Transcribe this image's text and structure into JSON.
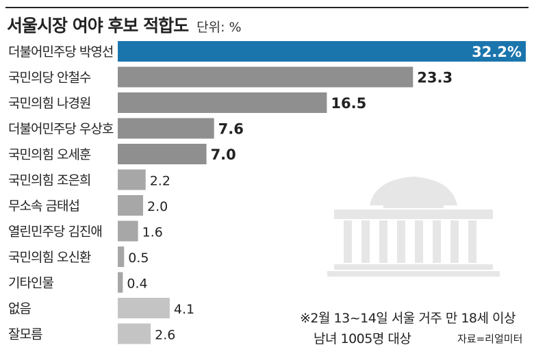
{
  "chart_data": {
    "type": "bar",
    "title": "서울시장 여야 후보 적합도",
    "unit": "단위: %",
    "categories": [
      "더불어민주당 박영선",
      "국민의당 안철수",
      "국민의힘 나경원",
      "더불어민주당 우상호",
      "국민의힘 오세훈",
      "국민의힘 조은희",
      "무소속 금태섭",
      "열린민주당 김진애",
      "국민의힘 오신환",
      "기타인물",
      "없음",
      "잘모름"
    ],
    "values": [
      32.2,
      23.3,
      16.5,
      7.6,
      7.0,
      2.2,
      2.0,
      1.6,
      0.5,
      0.4,
      4.1,
      2.6
    ],
    "value_labels": [
      "32.2%",
      "23.3",
      "16.5",
      "7.6",
      "7.0",
      "2.2",
      "2.0",
      "1.6",
      "0.5",
      "0.4",
      "4.1",
      "2.6"
    ],
    "xlim": [
      0,
      32.2
    ],
    "grid": false,
    "colors": {
      "highlight": "#1b75ad",
      "major": "#8f8f8f",
      "minor": "#a7a7a7",
      "other": "#c4c4c4"
    }
  },
  "note": {
    "line1": "※2월 13~14일 서울 거주 만 18세 이상",
    "line2": "남녀 1005명 대상"
  },
  "source": "자료=리얼미터"
}
